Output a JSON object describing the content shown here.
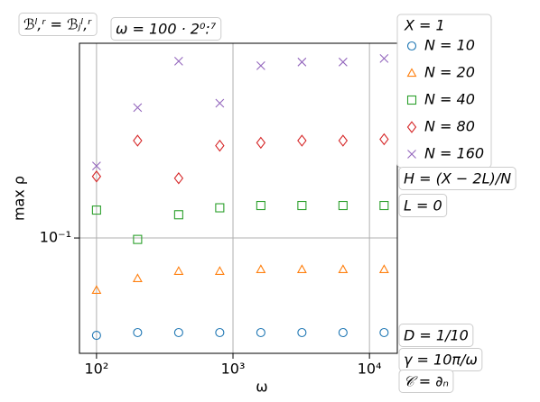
{
  "chart_data": {
    "type": "scatter",
    "x": [
      100,
      200,
      400,
      800,
      1600,
      3200,
      6400,
      12800
    ],
    "xlabel": "ω",
    "ylabel": "max ρ",
    "xscale": "log",
    "yscale": "log",
    "xlim": [
      75,
      16000
    ],
    "ylim": [
      0.044,
      0.4
    ],
    "xticks": [
      {
        "value": 100,
        "label": "10²"
      },
      {
        "value": 1000,
        "label": "10³"
      },
      {
        "value": 10000,
        "label": "10⁴"
      }
    ],
    "yticks": [
      {
        "value": 0.1,
        "label": "10⁻¹"
      }
    ],
    "grid": true,
    "legend_title": "X = 1",
    "legend_position": "right",
    "series": [
      {
        "name": "N = 10",
        "color": "#1f77b4",
        "marker": "circle",
        "values": [
          0.05,
          0.051,
          0.051,
          0.051,
          0.051,
          0.051,
          0.051,
          0.051
        ]
      },
      {
        "name": "N = 20",
        "color": "#ff7f0e",
        "marker": "triangle",
        "values": [
          0.069,
          0.075,
          0.079,
          0.079,
          0.08,
          0.08,
          0.08,
          0.08
        ]
      },
      {
        "name": "N = 40",
        "color": "#2ca02c",
        "marker": "square",
        "values": [
          0.122,
          0.099,
          0.118,
          0.124,
          0.126,
          0.126,
          0.126,
          0.126
        ]
      },
      {
        "name": "N = 80",
        "color": "#d62728",
        "marker": "diamond",
        "values": [
          0.155,
          0.2,
          0.153,
          0.193,
          0.197,
          0.2,
          0.2,
          0.202
        ]
      },
      {
        "name": "N = 160",
        "color": "#9467bd",
        "marker": "x",
        "values": [
          0.167,
          0.253,
          0.352,
          0.261,
          0.341,
          0.35,
          0.35,
          0.359
        ]
      }
    ],
    "annotations": [
      "ℬˡ,ʳ = ℬⱼˡ,ʳ",
      "ω = 100 · 2⁰:⁷",
      "H = (X − 2L)/N",
      "L = 0",
      "D = 1/10",
      "γ = 10π/ω",
      "𝒞 = ∂ₙ"
    ]
  }
}
